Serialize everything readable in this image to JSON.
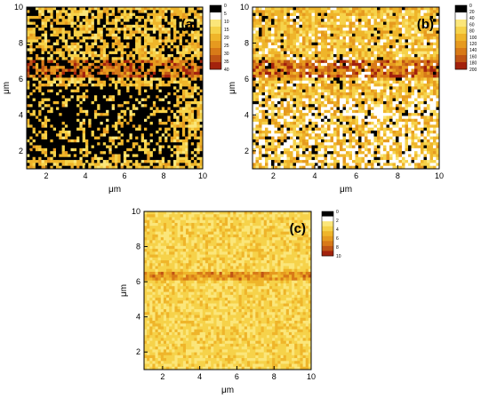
{
  "chart_data": [
    {
      "type": "heatmap",
      "panel_label": "(a)",
      "xlabel": "μm",
      "ylabel": "μm",
      "xlim": [
        1,
        10
      ],
      "ylim": [
        1,
        10
      ],
      "xticks": [
        "2",
        "4",
        "6",
        "8",
        "10"
      ],
      "yticks": [
        "2",
        "4",
        "6",
        "8",
        "10"
      ],
      "colorbar": {
        "ticks": [
          "0",
          "5",
          "10",
          "15",
          "20",
          "25",
          "30",
          "35",
          "40"
        ],
        "range": [
          0,
          40
        ],
        "colors": [
          "#000000",
          "#ffffff",
          "#fbe67a",
          "#f6d24a",
          "#efb52a",
          "#e69a1f",
          "#d87a18",
          "#c05515",
          "#a3220d"
        ]
      },
      "features": {
        "band_y": [
          6,
          7
        ],
        "band_value": 30,
        "background_value": 15,
        "dark_region": {
          "x": [
            1,
            8.5
          ],
          "y": [
            1.5,
            5.5
          ],
          "value": 0
        },
        "dark_fraction_elsewhere": 0.32
      }
    },
    {
      "type": "heatmap",
      "panel_label": "(b)",
      "xlabel": "μm",
      "ylabel": "μm",
      "xlim": [
        1,
        10
      ],
      "ylim": [
        1,
        10
      ],
      "xticks": [
        "2",
        "4",
        "6",
        "8",
        "10"
      ],
      "yticks": [
        "2",
        "4",
        "6",
        "8",
        "10"
      ],
      "colorbar": {
        "ticks": [
          "0",
          "20",
          "40",
          "60",
          "80",
          "100",
          "120",
          "140",
          "160",
          "180",
          "200"
        ],
        "range": [
          0,
          200
        ],
        "colors": [
          "#000000",
          "#ffffff",
          "#fbe67a",
          "#f6d24a",
          "#efb52a",
          "#e69a1f",
          "#d87a18",
          "#c05515",
          "#a3220d"
        ]
      },
      "features": {
        "band_y": [
          6,
          7
        ],
        "band_value": 150,
        "background_value": 80,
        "light_region": {
          "y": [
            1,
            5
          ],
          "value": 20
        }
      }
    },
    {
      "type": "heatmap",
      "panel_label": "(c)",
      "xlabel": "μm",
      "ylabel": "μm",
      "xlim": [
        1,
        10
      ],
      "ylim": [
        1,
        10
      ],
      "xticks": [
        "2",
        "4",
        "6",
        "8",
        "10"
      ],
      "yticks": [
        "2",
        "4",
        "6",
        "8",
        "10"
      ],
      "colorbar": {
        "ticks": [
          "0",
          "2",
          "4",
          "6",
          "8",
          "10"
        ],
        "range": [
          0,
          10
        ],
        "colors": [
          "#000000",
          "#ffffff",
          "#fbe67a",
          "#f6d24a",
          "#efb52a",
          "#e69a1f",
          "#d87a18",
          "#c05515",
          "#a3220d"
        ]
      },
      "features": {
        "band_y": [
          6,
          6.6
        ],
        "band_value": 6,
        "background_value": 3
      }
    }
  ]
}
